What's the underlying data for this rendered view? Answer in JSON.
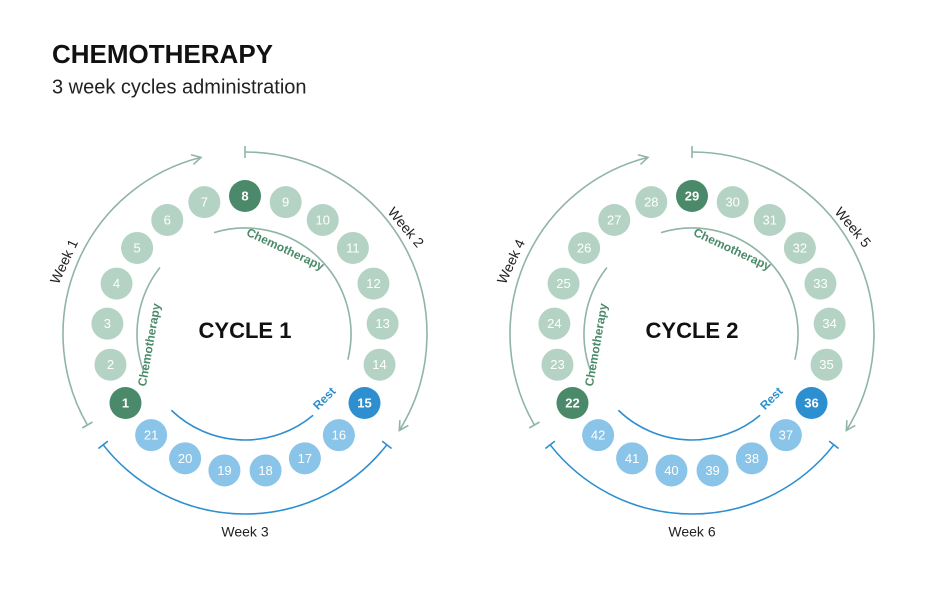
{
  "header": {
    "title": "CHEMOTHERAPY",
    "subtitle": "3 week cycles administration"
  },
  "cycles": [
    {
      "label": "CYCLE 1",
      "days": [
        1,
        2,
        3,
        4,
        5,
        6,
        7,
        8,
        9,
        10,
        11,
        12,
        13,
        14,
        15,
        16,
        17,
        18,
        19,
        20,
        21
      ],
      "weeks": [
        "Week 1",
        "Week 2",
        "Week 3"
      ],
      "phases": [
        "Chemotherapy",
        "Chemotherapy",
        "Rest"
      ]
    },
    {
      "label": "CYCLE 2",
      "days": [
        22,
        23,
        24,
        25,
        26,
        27,
        28,
        29,
        30,
        31,
        32,
        33,
        34,
        35,
        36,
        37,
        38,
        39,
        40,
        41,
        42
      ],
      "weeks": [
        "Week 4",
        "Week 5",
        "Week 6"
      ],
      "phases": [
        "Chemotherapy",
        "Chemotherapy",
        "Rest"
      ]
    }
  ]
}
